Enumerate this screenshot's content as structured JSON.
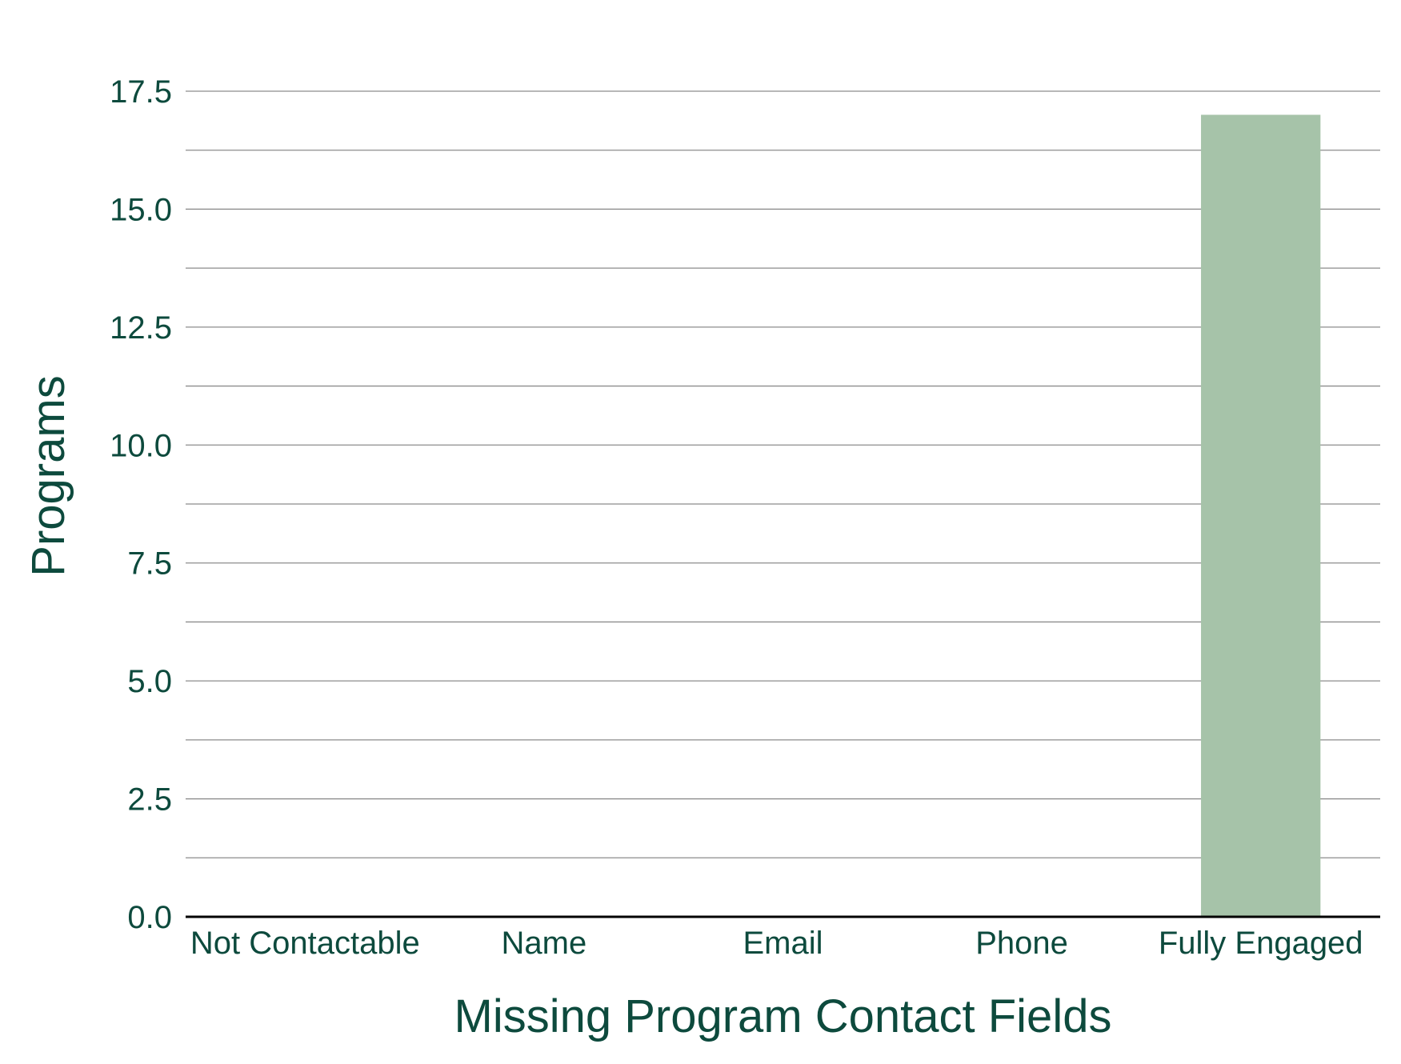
{
  "chart_data": {
    "type": "bar",
    "title": "",
    "xlabel": "Missing Program Contact Fields",
    "ylabel": "Programs",
    "categories": [
      "Not Contactable",
      "Name",
      "Email",
      "Phone",
      "Fully Engaged"
    ],
    "values": [
      0,
      0,
      0,
      0,
      17
    ],
    "ylim": [
      0,
      17.5
    ],
    "y_ticks": [
      "0.0",
      "2.5",
      "5.0",
      "7.5",
      "10.0",
      "12.5",
      "15.0",
      "17.5"
    ],
    "grid": true,
    "legend": "none",
    "colors": {
      "bar": "#a6c3a9",
      "text": "#0d4a3d",
      "grid": "#8c8c8c",
      "axis": "#000000"
    }
  }
}
